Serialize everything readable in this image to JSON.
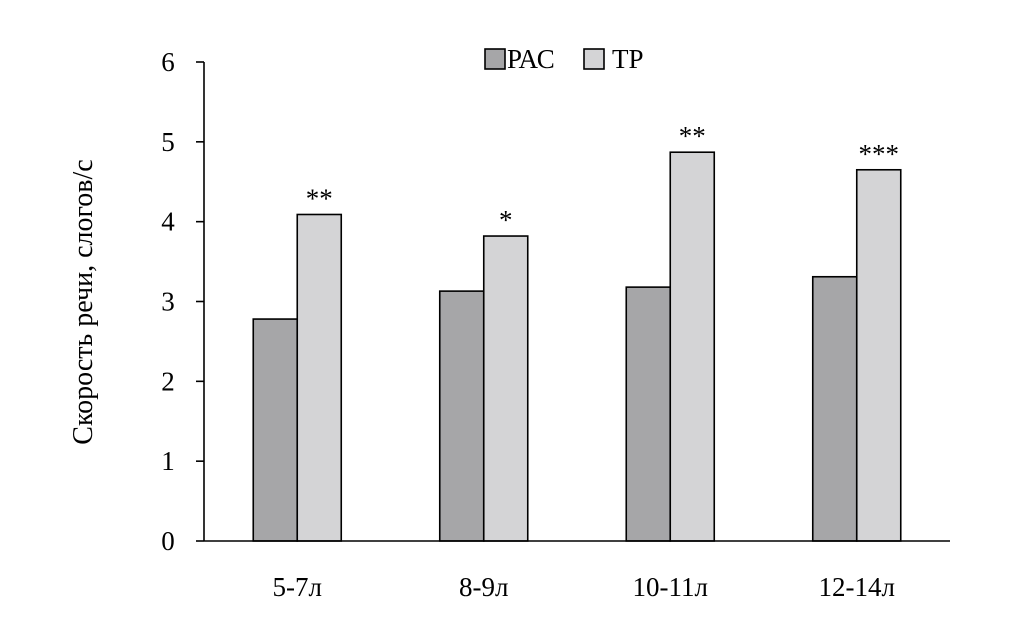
{
  "chart_data": {
    "type": "bar",
    "categories": [
      "5-7л",
      "8-9л",
      "10-11л",
      "12-14л"
    ],
    "series": [
      {
        "name": "РАС",
        "values": [
          2.78,
          3.13,
          3.18,
          3.31
        ],
        "color": "#a6a6a8"
      },
      {
        "name": "ТР",
        "values": [
          4.09,
          3.82,
          4.87,
          4.65
        ],
        "color": "#d4d4d6"
      }
    ],
    "annotations": [
      "**",
      "*",
      "**",
      "***"
    ],
    "title": "",
    "xlabel": "",
    "ylabel": "Скорость речи, слогов/с",
    "ylim": [
      0,
      6
    ],
    "yticks": [
      "0",
      "1",
      "2",
      "3",
      "4",
      "5",
      "6"
    ],
    "grid": false,
    "legend_position": "top-center"
  }
}
